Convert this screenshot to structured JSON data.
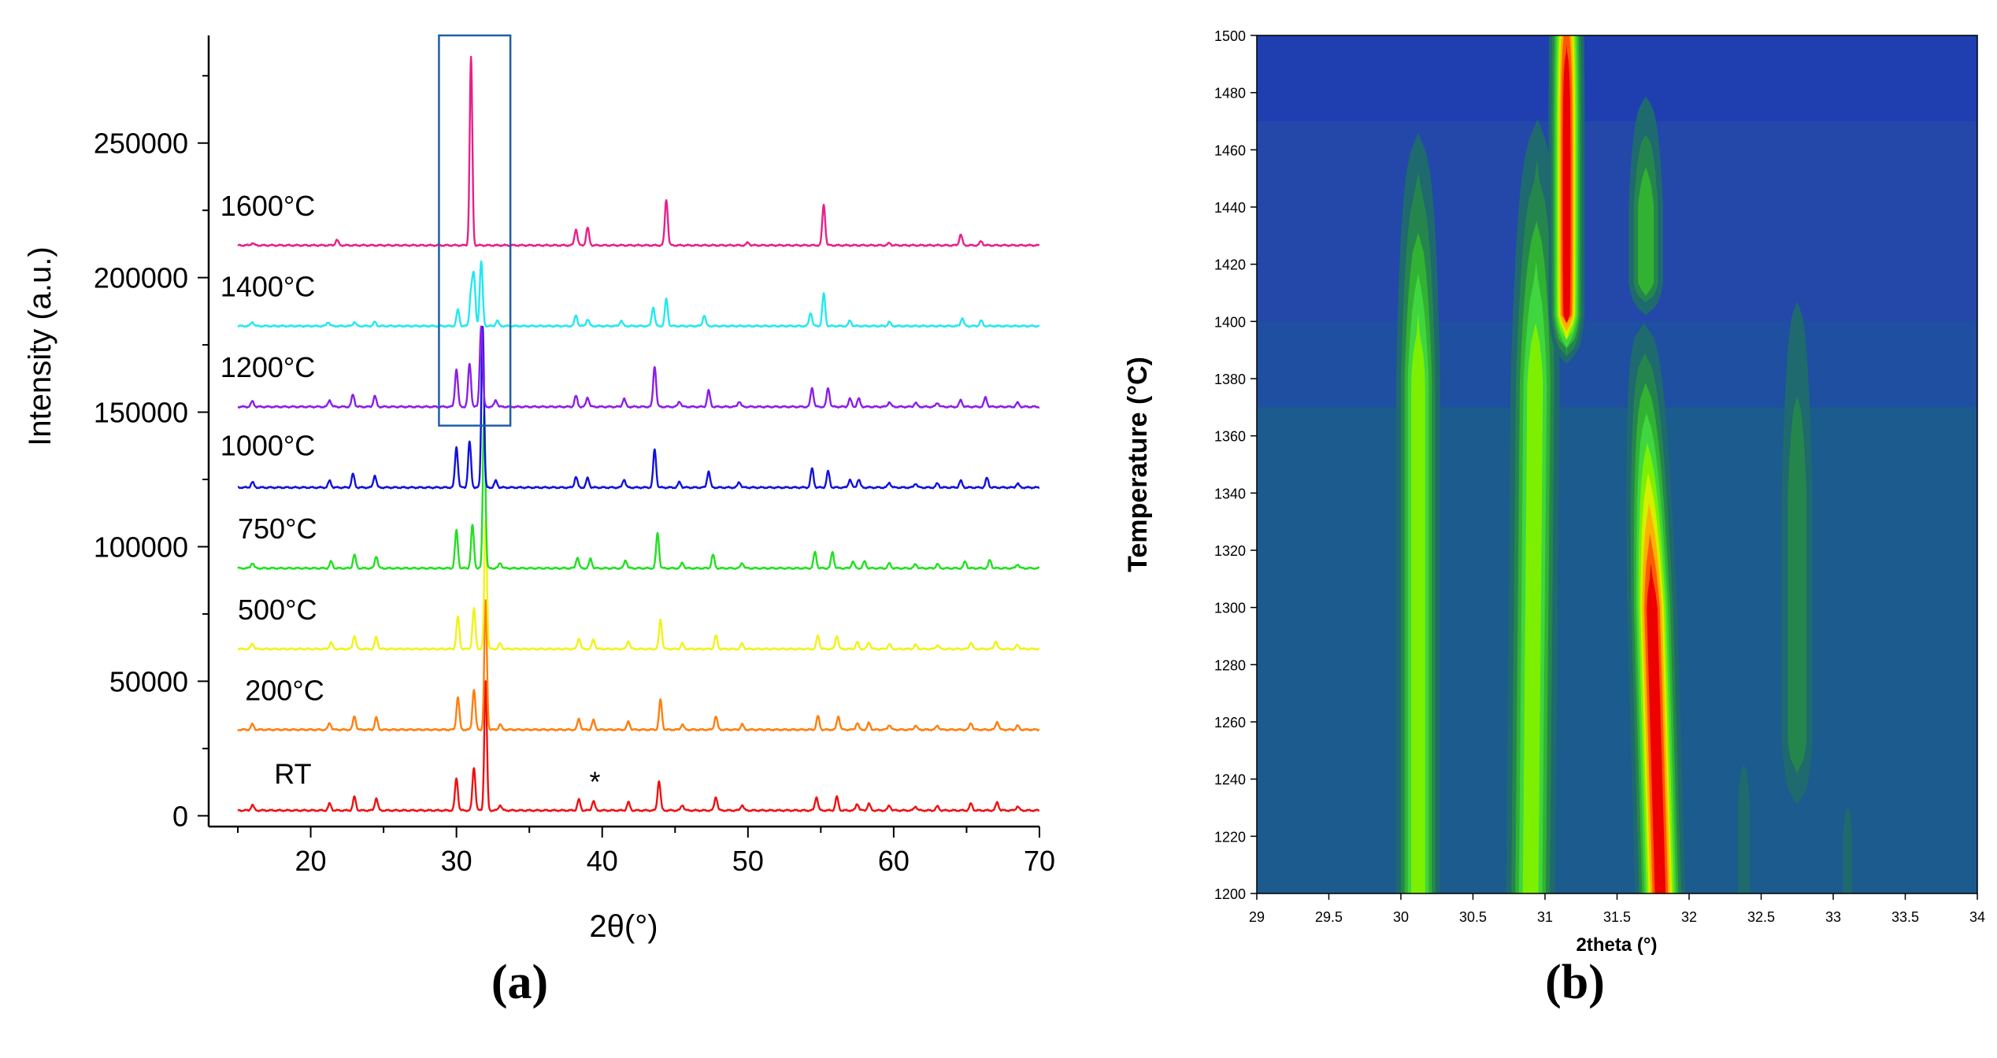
{
  "panel_labels": {
    "a": "(a)",
    "b": "(b)"
  },
  "colors": {
    "axis": "#000000",
    "highlight_box": "#1f5fa8",
    "contour_levels": [
      "#1f3fb0",
      "#2348aa",
      "#1e4fa0",
      "#1d5596",
      "#1c5b8e",
      "#1e6a6e",
      "#25864d",
      "#32b232",
      "#3fd63f",
      "#7cf000",
      "#d4f000",
      "#ffb000",
      "#ff5a00",
      "#ee0000"
    ]
  },
  "chart_data": [
    {
      "type": "line",
      "panel": "a",
      "title": "",
      "xlabel": "2θ(°)",
      "ylabel": "Intensity (a.u.)",
      "xlim": [
        13,
        70
      ],
      "ylim": [
        -4000,
        290000
      ],
      "x_ticks": [
        20,
        30,
        40,
        50,
        60,
        70
      ],
      "y_ticks": [
        0,
        50000,
        100000,
        150000,
        200000,
        250000
      ],
      "grid": false,
      "highlight_box": {
        "x": [
          28.8,
          33.7
        ],
        "y": [
          145000,
          290000
        ]
      },
      "annotations": [
        {
          "text": "*",
          "x": 39.5,
          "y": 9000
        }
      ],
      "series": [
        {
          "name": "RT",
          "color": "#ee1111",
          "offset": 2000,
          "label_x": 17.5,
          "label_y": 12000,
          "peaks": [
            [
              16.0,
              2000
            ],
            [
              21.3,
              2500
            ],
            [
              23.0,
              5000
            ],
            [
              24.5,
              4500
            ],
            [
              30.0,
              12000
            ],
            [
              31.2,
              16000
            ],
            [
              32.0,
              48000
            ],
            [
              33.0,
              2000
            ],
            [
              38.4,
              4000
            ],
            [
              39.4,
              3500
            ],
            [
              41.8,
              3000
            ],
            [
              43.9,
              11000
            ],
            [
              45.5,
              2000
            ],
            [
              47.8,
              5000
            ],
            [
              49.6,
              2000
            ],
            [
              54.7,
              5000
            ],
            [
              56.1,
              5000
            ],
            [
              57.5,
              2500
            ],
            [
              58.3,
              2500
            ],
            [
              59.7,
              1800
            ],
            [
              61.5,
              1500
            ],
            [
              63.0,
              1500
            ],
            [
              65.3,
              2500
            ],
            [
              67.1,
              3000
            ],
            [
              68.5,
              1500
            ]
          ]
        },
        {
          "name": "200°C",
          "color": "#ff7f0e",
          "offset": 32000,
          "label_x": 15.5,
          "label_y": 43000,
          "peaks": [
            [
              16.0,
              2000
            ],
            [
              21.3,
              2500
            ],
            [
              23.0,
              5000
            ],
            [
              24.5,
              4500
            ],
            [
              30.1,
              12000
            ],
            [
              31.2,
              15000
            ],
            [
              32.0,
              48000
            ],
            [
              33.0,
              2000
            ],
            [
              38.4,
              4000
            ],
            [
              39.4,
              3500
            ],
            [
              41.8,
              3000
            ],
            [
              44.0,
              11000
            ],
            [
              45.5,
              2000
            ],
            [
              47.8,
              5000
            ],
            [
              49.6,
              2000
            ],
            [
              54.8,
              5000
            ],
            [
              56.2,
              5000
            ],
            [
              57.5,
              2500
            ],
            [
              58.3,
              2500
            ],
            [
              59.7,
              1800
            ],
            [
              61.5,
              1500
            ],
            [
              63.0,
              1500
            ],
            [
              65.3,
              2500
            ],
            [
              67.1,
              3000
            ],
            [
              68.5,
              1500
            ]
          ]
        },
        {
          "name": "500°C",
          "color": "#f2f21a",
          "offset": 62000,
          "label_x": 15.0,
          "label_y": 73000,
          "peaks": [
            [
              16.0,
              2000
            ],
            [
              21.4,
              2500
            ],
            [
              23.0,
              5000
            ],
            [
              24.5,
              4500
            ],
            [
              30.1,
              12000
            ],
            [
              31.2,
              15000
            ],
            [
              32.0,
              48000
            ],
            [
              33.0,
              2000
            ],
            [
              38.4,
              4000
            ],
            [
              39.4,
              3500
            ],
            [
              41.8,
              3000
            ],
            [
              44.0,
              11000
            ],
            [
              45.5,
              2000
            ],
            [
              47.8,
              5000
            ],
            [
              49.6,
              2000
            ],
            [
              54.8,
              5000
            ],
            [
              56.1,
              5000
            ],
            [
              57.5,
              2500
            ],
            [
              58.3,
              2500
            ],
            [
              59.7,
              1800
            ],
            [
              61.5,
              1500
            ],
            [
              63.0,
              1500
            ],
            [
              65.3,
              2500
            ],
            [
              67.0,
              3000
            ],
            [
              68.5,
              1500
            ]
          ]
        },
        {
          "name": "750°C",
          "color": "#22e022",
          "offset": 92000,
          "label_x": 15.0,
          "label_y": 103000,
          "peaks": [
            [
              16.0,
              2000
            ],
            [
              21.4,
              2500
            ],
            [
              23.0,
              5000
            ],
            [
              24.5,
              4500
            ],
            [
              30.0,
              14000
            ],
            [
              31.1,
              16000
            ],
            [
              31.9,
              58000
            ],
            [
              33.0,
              2000
            ],
            [
              38.3,
              4000
            ],
            [
              39.2,
              3500
            ],
            [
              41.6,
              3000
            ],
            [
              43.8,
              13000
            ],
            [
              45.5,
              2000
            ],
            [
              47.6,
              5000
            ],
            [
              49.6,
              2000
            ],
            [
              54.6,
              6000
            ],
            [
              55.8,
              6000
            ],
            [
              57.2,
              2500
            ],
            [
              58.0,
              2500
            ],
            [
              59.7,
              1800
            ],
            [
              61.5,
              1500
            ],
            [
              63.0,
              1500
            ],
            [
              64.9,
              2500
            ],
            [
              66.6,
              3000
            ],
            [
              68.5,
              1500
            ]
          ]
        },
        {
          "name": "1000°C",
          "color": "#1111dd",
          "offset": 122000,
          "label_x": 13.8,
          "label_y": 134000,
          "peaks": [
            [
              16.0,
              2000
            ],
            [
              21.3,
              2500
            ],
            [
              22.9,
              5000
            ],
            [
              24.4,
              4500
            ],
            [
              30.0,
              15000
            ],
            [
              30.9,
              17000
            ],
            [
              31.8,
              60000
            ],
            [
              32.7,
              2500
            ],
            [
              38.2,
              4000
            ],
            [
              39.0,
              3500
            ],
            [
              41.5,
              3000
            ],
            [
              43.6,
              14000
            ],
            [
              45.3,
              2000
            ],
            [
              47.3,
              6000
            ],
            [
              49.4,
              2000
            ],
            [
              54.4,
              7000
            ],
            [
              55.5,
              6000
            ],
            [
              57.0,
              3000
            ],
            [
              57.6,
              3000
            ],
            [
              59.7,
              1800
            ],
            [
              61.5,
              1500
            ],
            [
              63.0,
              1500
            ],
            [
              64.6,
              2500
            ],
            [
              66.4,
              3500
            ],
            [
              68.5,
              1500
            ]
          ]
        },
        {
          "name": "1200°C",
          "color": "#8a1fe8",
          "offset": 152000,
          "label_x": 13.8,
          "label_y": 163000,
          "peaks": [
            [
              16.0,
              2000
            ],
            [
              21.3,
              2500
            ],
            [
              22.9,
              4500
            ],
            [
              24.4,
              4000
            ],
            [
              30.0,
              14000
            ],
            [
              30.9,
              16000
            ],
            [
              31.7,
              30000
            ],
            [
              32.7,
              2500
            ],
            [
              38.2,
              4000
            ],
            [
              39.0,
              3500
            ],
            [
              41.5,
              3000
            ],
            [
              43.6,
              15000
            ],
            [
              45.3,
              2000
            ],
            [
              47.3,
              6000
            ],
            [
              49.4,
              2000
            ],
            [
              54.4,
              7000
            ],
            [
              55.5,
              7000
            ],
            [
              57.0,
              3000
            ],
            [
              57.6,
              3000
            ],
            [
              59.7,
              1800
            ],
            [
              61.5,
              1500
            ],
            [
              63.0,
              1500
            ],
            [
              64.6,
              2500
            ],
            [
              66.3,
              3500
            ],
            [
              68.5,
              1500
            ]
          ]
        },
        {
          "name": "1400°C",
          "color": "#22e8f0",
          "offset": 182000,
          "label_x": 13.8,
          "label_y": 193000,
          "peaks": [
            [
              16.0,
              1500
            ],
            [
              21.2,
              1500
            ],
            [
              23.0,
              1500
            ],
            [
              24.4,
              1500
            ],
            [
              30.1,
              6000
            ],
            [
              31.0,
              12000
            ],
            [
              31.2,
              18000
            ],
            [
              31.7,
              24000
            ],
            [
              32.8,
              2000
            ],
            [
              38.2,
              4000
            ],
            [
              39.0,
              2500
            ],
            [
              41.3,
              2000
            ],
            [
              43.5,
              7000
            ],
            [
              44.4,
              10000
            ],
            [
              47.0,
              4000
            ],
            [
              54.3,
              5000
            ],
            [
              55.2,
              12000
            ],
            [
              57.0,
              2000
            ],
            [
              59.7,
              1500
            ],
            [
              64.7,
              3000
            ],
            [
              66.0,
              2000
            ]
          ]
        },
        {
          "name": "1600°C",
          "color": "#e8208a",
          "offset": 212000,
          "label_x": 13.8,
          "label_y": 223000,
          "peaks": [
            [
              16.0,
              800
            ],
            [
              21.8,
              2000
            ],
            [
              31.0,
              70000
            ],
            [
              38.2,
              6000
            ],
            [
              39.0,
              6500
            ],
            [
              44.4,
              17000
            ],
            [
              50.0,
              1000
            ],
            [
              55.2,
              15000
            ],
            [
              59.7,
              800
            ],
            [
              64.6,
              4000
            ],
            [
              66.0,
              1500
            ]
          ]
        }
      ]
    },
    {
      "type": "heatmap",
      "panel": "b",
      "title": "",
      "xlabel": "2theta (°)",
      "ylabel": "Temperature (°C)",
      "xlim": [
        29,
        34
      ],
      "ylim": [
        1200,
        1500
      ],
      "x_ticks": [
        "29",
        "29.5",
        "30",
        "30.5",
        "31",
        "31.5",
        "32",
        "32.5",
        "33",
        "33.5",
        "34"
      ],
      "y_ticks": [
        "1200",
        "1220",
        "1240",
        "1260",
        "1280",
        "1300",
        "1320",
        "1340",
        "1360",
        "1380",
        "1400",
        "1420",
        "1440",
        "1460",
        "1480",
        "1500"
      ],
      "grid": false,
      "background_bands": [
        {
          "t_from": 1200,
          "t_to": 1370,
          "level": 4
        },
        {
          "t_from": 1370,
          "t_to": 1400,
          "level": 2
        },
        {
          "t_from": 1400,
          "t_to": 1470,
          "level": 1
        },
        {
          "t_from": 1470,
          "t_to": 1500,
          "level": 0
        }
      ],
      "ridges": [
        {
          "center_low": 30.12,
          "center_high": 30.12,
          "t_from": 1200,
          "t_to": 1480,
          "width": 0.09,
          "peak_level": 9,
          "fade_t": 1380
        },
        {
          "center_low": 30.9,
          "center_high": 30.95,
          "t_from": 1200,
          "t_to": 1485,
          "width": 0.1,
          "peak_level": 9,
          "fade_t": 1380
        },
        {
          "center_low": 31.15,
          "center_high": 31.15,
          "t_from": 1385,
          "t_to": 1500,
          "width": 0.065,
          "peak_level": 13,
          "fade_t": 1500
        },
        {
          "center_low": 31.8,
          "center_high": 31.68,
          "t_from": 1200,
          "t_to": 1410,
          "width": 0.09,
          "peak_level": 13,
          "fade_t": 1300
        },
        {
          "center_low": 31.7,
          "center_high": 31.7,
          "t_from": 1400,
          "t_to": 1490,
          "width": 0.08,
          "peak_level": 7,
          "fade_t": 1440
        },
        {
          "center_low": 32.75,
          "center_high": 32.75,
          "t_from": 1220,
          "t_to": 1440,
          "width": 0.08,
          "peak_level": 6,
          "fade_t": 1340
        },
        {
          "center_low": 32.38,
          "center_high": 32.38,
          "t_from": 1200,
          "t_to": 1260,
          "width": 0.04,
          "peak_level": 5,
          "fade_t": 1230
        },
        {
          "center_low": 33.1,
          "center_high": 33.1,
          "t_from": 1200,
          "t_to": 1240,
          "width": 0.03,
          "peak_level": 5,
          "fade_t": 1220
        }
      ]
    }
  ]
}
